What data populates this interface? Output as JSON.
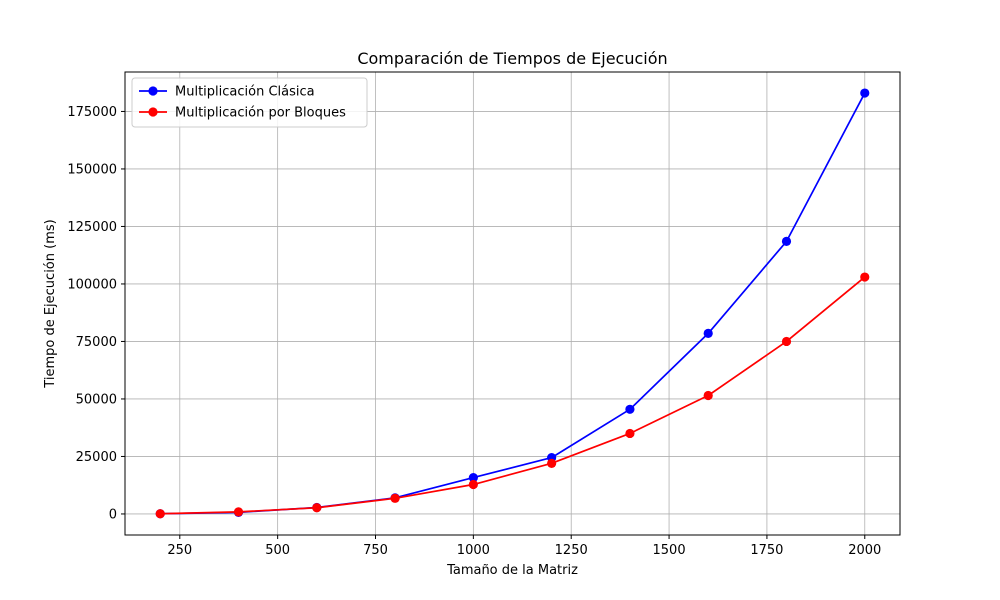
{
  "chart_data": {
    "type": "line",
    "title": "Comparación de Tiempos de Ejecución",
    "xlabel": "Tamaño de la Matriz",
    "ylabel": "Tiempo de Ejecución (ms)",
    "xlim": [
      110,
      2090
    ],
    "ylim": [
      -9150,
      192150
    ],
    "xticks": [
      250,
      500,
      750,
      1000,
      1250,
      1500,
      1750,
      2000
    ],
    "yticks": [
      0,
      25000,
      50000,
      75000,
      100000,
      125000,
      150000,
      175000
    ],
    "grid": true,
    "legend_position": "top-left",
    "x": [
      200,
      400,
      600,
      800,
      1000,
      1200,
      1400,
      1600,
      1800,
      2000
    ],
    "series": [
      {
        "name": "Multiplicación Clásica",
        "color": "#0000ff",
        "marker": "circle",
        "values": [
          100,
          700,
          2800,
          7000,
          15800,
          24500,
          45500,
          78500,
          118500,
          183000
        ]
      },
      {
        "name": "Multiplicación por Bloques",
        "color": "#ff0000",
        "marker": "circle",
        "values": [
          100,
          900,
          2700,
          6800,
          12800,
          22000,
          35000,
          51500,
          75000,
          103000
        ]
      }
    ]
  }
}
